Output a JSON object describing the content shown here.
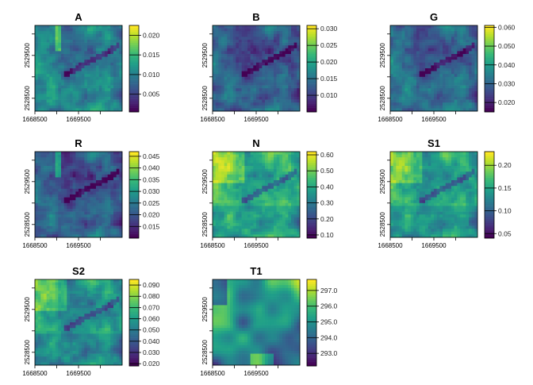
{
  "chart_data": [
    {
      "type": "heatmap",
      "title": "A",
      "colorscale": "viridis",
      "zlim": [
        0.0005,
        0.0225
      ],
      "legend_ticks": [
        "0.005",
        "0.010",
        "0.015",
        "0.020"
      ],
      "legend_values": [
        0.005,
        0.01,
        0.015,
        0.02
      ]
    },
    {
      "type": "heatmap",
      "title": "B",
      "colorscale": "viridis",
      "zlim": [
        0.005,
        0.031
      ],
      "legend_ticks": [
        "0.010",
        "0.015",
        "0.020",
        "0.025",
        "0.030"
      ],
      "legend_values": [
        0.01,
        0.015,
        0.02,
        0.025,
        0.03
      ]
    },
    {
      "type": "heatmap",
      "title": "G",
      "colorscale": "viridis",
      "zlim": [
        0.015,
        0.061
      ],
      "legend_ticks": [
        "0.020",
        "0.030",
        "0.040",
        "0.050",
        "0.060"
      ],
      "legend_values": [
        0.02,
        0.03,
        0.04,
        0.05,
        0.06
      ]
    },
    {
      "type": "heatmap",
      "title": "R",
      "colorscale": "viridis",
      "zlim": [
        0.01,
        0.047
      ],
      "legend_ticks": [
        "0.015",
        "0.020",
        "0.025",
        "0.030",
        "0.035",
        "0.040",
        "0.045"
      ],
      "legend_values": [
        0.015,
        0.02,
        0.025,
        0.03,
        0.035,
        0.04,
        0.045
      ]
    },
    {
      "type": "heatmap",
      "title": "N",
      "colorscale": "viridis",
      "zlim": [
        0.08,
        0.62
      ],
      "legend_ticks": [
        "0.10",
        "0.20",
        "0.30",
        "0.40",
        "0.50",
        "0.60"
      ],
      "legend_values": [
        0.1,
        0.2,
        0.3,
        0.4,
        0.5,
        0.6
      ]
    },
    {
      "type": "heatmap",
      "title": "S1",
      "colorscale": "viridis",
      "zlim": [
        0.04,
        0.23
      ],
      "legend_ticks": [
        "0.05",
        "0.10",
        "0.15",
        "0.20"
      ],
      "legend_values": [
        0.05,
        0.1,
        0.15,
        0.2
      ]
    },
    {
      "type": "heatmap",
      "title": "S2",
      "colorscale": "viridis",
      "zlim": [
        0.018,
        0.095
      ],
      "legend_ticks": [
        "0.020",
        "0.030",
        "0.040",
        "0.050",
        "0.060",
        "0.070",
        "0.080",
        "0.090"
      ],
      "legend_values": [
        0.02,
        0.03,
        0.04,
        0.05,
        0.06,
        0.07,
        0.08,
        0.09
      ]
    },
    {
      "type": "heatmap",
      "title": "T1",
      "colorscale": "viridis",
      "zlim": [
        292.2,
        297.7
      ],
      "legend_ticks": [
        "293.0",
        "294.0",
        "295.0",
        "296.0",
        "297.0"
      ],
      "legend_values": [
        293,
        294,
        295,
        296,
        297
      ]
    }
  ],
  "axes": {
    "xlim": [
      1668500,
      1670500
    ],
    "ylim": [
      2528200,
      2530200
    ],
    "x_ticks": [
      1668500,
      1669000,
      1669500,
      1670000
    ],
    "x_tick_labels": [
      "1668500",
      "",
      "1669500",
      ""
    ],
    "y_ticks": [
      2528500,
      2529000,
      2529500,
      2530000
    ],
    "y_tick_labels": [
      "2528500",
      "",
      "2529500",
      ""
    ]
  }
}
